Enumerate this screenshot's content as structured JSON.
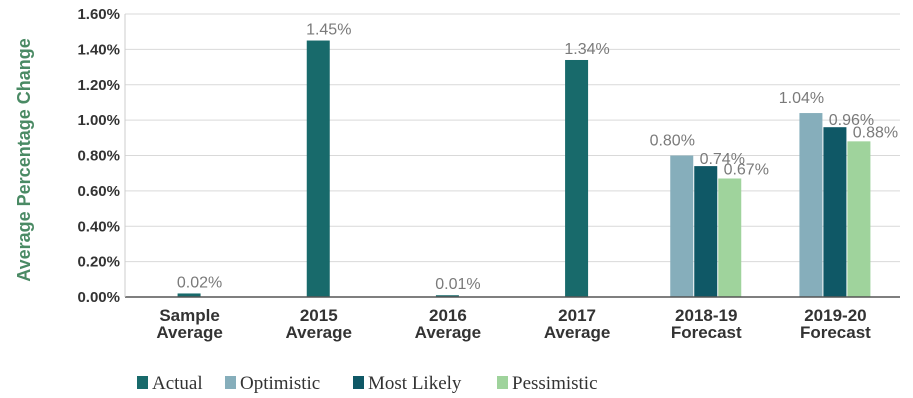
{
  "chart_data": {
    "type": "bar",
    "ylabel": "Average Percentage Change",
    "ylim": [
      0,
      1.6
    ],
    "yticks": [
      "0.00%",
      "0.20%",
      "0.40%",
      "0.60%",
      "0.80%",
      "1.00%",
      "1.20%",
      "1.40%",
      "1.60%"
    ],
    "categories": [
      [
        "Sample",
        "Average"
      ],
      [
        "2015",
        "Average"
      ],
      [
        "2016",
        "Average"
      ],
      [
        "2017",
        "Average"
      ],
      [
        "2018-19",
        "Forecast"
      ],
      [
        "2019-20",
        "Forecast"
      ]
    ],
    "legend_position": "bottom",
    "series": [
      {
        "name": "Actual",
        "color": "#186a6b",
        "values": [
          0.02,
          1.45,
          0.01,
          1.34,
          null,
          null
        ],
        "labels": [
          "0.02%",
          "1.45%",
          "0.01%",
          "1.34%",
          "",
          ""
        ]
      },
      {
        "name": "Optimistic",
        "color": "#86aebb",
        "values": [
          null,
          null,
          null,
          null,
          0.8,
          1.04
        ],
        "labels": [
          "",
          "",
          "",
          "",
          "0.80%",
          "1.04%"
        ]
      },
      {
        "name": "Most Likely",
        "color": "#0f5866",
        "values": [
          null,
          null,
          null,
          null,
          0.74,
          0.96
        ],
        "labels": [
          "",
          "",
          "",
          "",
          "0.74%",
          "0.96%"
        ]
      },
      {
        "name": "Pessimistic",
        "color": "#9fd39c",
        "values": [
          null,
          null,
          null,
          null,
          0.67,
          0.88
        ],
        "labels": [
          "",
          "",
          "",
          "",
          "0.67%",
          "0.88%"
        ]
      }
    ]
  }
}
